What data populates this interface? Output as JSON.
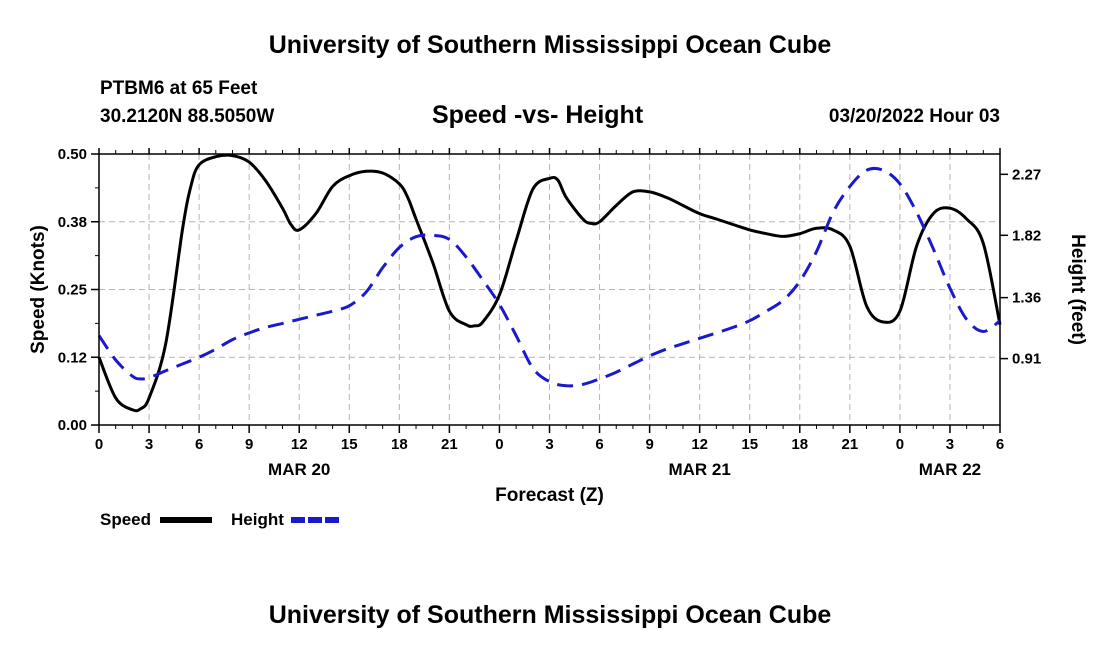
{
  "header": {
    "title": "University of Southern Mississippi Ocean Cube",
    "station": "PTBM6 at 65 Feet",
    "coords": "30.2120N  88.5050W",
    "chart_title": "Speed -vs- Height",
    "timestamp": "03/20/2022 Hour 03"
  },
  "footer": {
    "title": "University of Southern Mississippi Ocean Cube"
  },
  "colors": {
    "speed": "#000000",
    "height": "#1a1acc",
    "grid": "#b4b4b4"
  },
  "chart_data": {
    "type": "line",
    "title": "Speed -vs- Height",
    "xlabel": "Forecast (Z)",
    "ylabel": "Speed (Knots)",
    "y2label": "Height (feet)",
    "xlim": [
      0,
      54
    ],
    "ylim": [
      0,
      0.5
    ],
    "y2lim": [
      0.42,
      2.42
    ],
    "x_ticks": [
      0,
      3,
      6,
      9,
      12,
      15,
      18,
      21,
      24,
      27,
      30,
      33,
      36,
      39,
      42,
      45,
      48,
      51,
      54
    ],
    "x_tick_labels": [
      "0",
      "3",
      "6",
      "9",
      "12",
      "15",
      "18",
      "21",
      "0",
      "3",
      "6",
      "9",
      "12",
      "15",
      "18",
      "21",
      "0",
      "3",
      "6"
    ],
    "date_labels": [
      {
        "x": 12,
        "label": "MAR 20"
      },
      {
        "x": 36,
        "label": "MAR 21"
      },
      {
        "x": 51,
        "label": "MAR 22"
      }
    ],
    "y_ticks": [
      0,
      0.125,
      0.25,
      0.375,
      0.5
    ],
    "y_tick_labels": [
      "0.00",
      "0.12",
      "0.25",
      "0.38",
      "0.50"
    ],
    "y2_ticks": [
      0.91,
      1.36,
      1.82,
      2.27
    ],
    "y2_tick_labels": [
      "0.91",
      "1.36",
      "1.82",
      "2.27"
    ],
    "legend": [
      {
        "name": "Speed",
        "style": "solid"
      },
      {
        "name": "Height",
        "style": "dashed"
      }
    ],
    "series": [
      {
        "name": "Speed",
        "axis": "left",
        "style": "solid",
        "x": [
          0,
          1,
          2,
          2.5,
          3,
          4,
          5,
          5.5,
          6,
          7,
          8,
          9,
          10,
          11,
          11.5,
          12,
          13,
          14,
          15,
          16,
          17,
          18,
          18.5,
          19,
          20,
          21,
          22,
          22.5,
          23,
          24,
          25,
          26,
          27,
          27.5,
          28,
          29,
          29.5,
          30,
          31,
          32,
          33,
          34,
          35,
          36,
          37,
          38,
          39,
          40,
          41,
          42,
          43,
          44,
          45,
          46,
          47,
          48,
          49,
          50,
          51,
          52,
          53,
          54
        ],
        "values": [
          0.125,
          0.05,
          0.028,
          0.03,
          0.05,
          0.15,
          0.36,
          0.44,
          0.48,
          0.495,
          0.497,
          0.485,
          0.45,
          0.4,
          0.37,
          0.36,
          0.39,
          0.44,
          0.46,
          0.468,
          0.465,
          0.445,
          0.42,
          0.38,
          0.3,
          0.21,
          0.185,
          0.183,
          0.19,
          0.24,
          0.34,
          0.435,
          0.455,
          0.452,
          0.42,
          0.38,
          0.372,
          0.375,
          0.405,
          0.43,
          0.43,
          0.42,
          0.405,
          0.39,
          0.38,
          0.37,
          0.36,
          0.353,
          0.348,
          0.353,
          0.363,
          0.36,
          0.33,
          0.22,
          0.19,
          0.21,
          0.33,
          0.39,
          0.4,
          0.38,
          0.335,
          0.185
        ]
      },
      {
        "name": "Height",
        "axis": "right",
        "style": "dashed",
        "x": [
          0,
          1,
          2,
          2.5,
          3,
          4,
          5,
          6,
          7,
          8,
          9,
          10,
          11,
          12,
          13,
          14,
          15,
          16,
          17,
          18,
          19,
          20,
          21,
          22,
          23,
          24,
          25,
          26,
          27,
          28,
          29,
          30,
          31,
          32,
          33,
          34,
          35,
          36,
          37,
          38,
          39,
          40,
          41,
          42,
          43,
          44,
          45,
          46,
          47,
          48,
          49,
          50,
          51,
          52,
          53,
          54
        ],
        "values": [
          1.08,
          0.9,
          0.78,
          0.76,
          0.77,
          0.82,
          0.87,
          0.92,
          0.98,
          1.05,
          1.1,
          1.14,
          1.17,
          1.2,
          1.23,
          1.26,
          1.3,
          1.4,
          1.58,
          1.73,
          1.81,
          1.82,
          1.79,
          1.66,
          1.49,
          1.31,
          1.08,
          0.84,
          0.74,
          0.71,
          0.72,
          0.76,
          0.81,
          0.87,
          0.93,
          0.98,
          1.02,
          1.06,
          1.1,
          1.14,
          1.19,
          1.26,
          1.34,
          1.48,
          1.7,
          1.99,
          2.18,
          2.3,
          2.3,
          2.2,
          1.99,
          1.72,
          1.43,
          1.2,
          1.11,
          1.19
        ]
      }
    ]
  }
}
